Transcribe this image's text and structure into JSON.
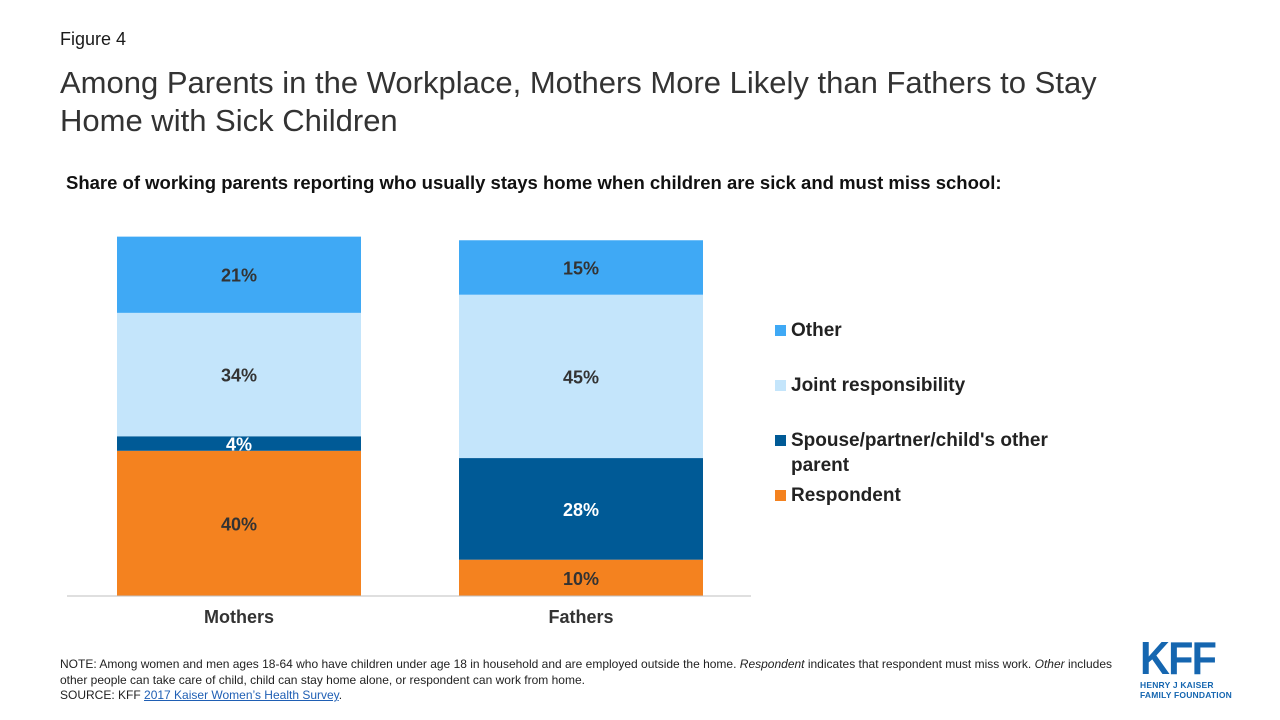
{
  "figure_label": "Figure 4",
  "title": "Among Parents in the Workplace, Mothers More Likely than Fathers to Stay Home with Sick Children",
  "subtitle": "Share of working parents reporting who usually stays home when children are sick and must miss school:",
  "chart_data": {
    "type": "bar",
    "stacked": true,
    "categories": [
      "Mothers",
      "Fathers"
    ],
    "series": [
      {
        "name": "Respondent",
        "values": [
          40,
          10
        ],
        "labels": [
          "40%",
          "10%"
        ],
        "color": "#F4821F"
      },
      {
        "name": "Spouse/partner/child's other parent",
        "values": [
          4,
          28
        ],
        "labels": [
          "4%",
          "28%"
        ],
        "color": "#005A96"
      },
      {
        "name": "Joint responsibility",
        "values": [
          34,
          45
        ],
        "labels": [
          "34%",
          "45%"
        ],
        "color": "#C4E5FB"
      },
      {
        "name": "Other",
        "values": [
          21,
          15
        ],
        "labels": [
          "21%",
          "15%"
        ],
        "color": "#3FA9F5"
      }
    ],
    "ylim": [
      0,
      100
    ],
    "legend_position": "right",
    "grid": false
  },
  "legend": {
    "items": [
      {
        "label": "Other",
        "color": "#3FA9F5"
      },
      {
        "label": "Joint responsibility",
        "color": "#C4E5FB"
      },
      {
        "label": "Spouse/partner/child's other parent",
        "color": "#005A96"
      },
      {
        "label": "Respondent",
        "color": "#F4821F"
      }
    ]
  },
  "note": {
    "prefix": "NOTE: Among women and men ages 18-64  who have children under age 18 in household and are employed outside the home. ",
    "italic1": "Respondent",
    "mid": " indicates that respondent  must miss work. ",
    "italic2": "Other",
    "suffix": " includes other people  can take care of child, child can stay home alone, or respondent  can work from home.",
    "source_prefix": "SOURCE: KFF ",
    "source_link": "2017 Kaiser Women’s Health Survey",
    "source_suffix": "."
  },
  "logo": {
    "text": "KFF",
    "line1": "HENRY J KAISER",
    "line2": "FAMILY FOUNDATION",
    "color": "#1566B0"
  }
}
